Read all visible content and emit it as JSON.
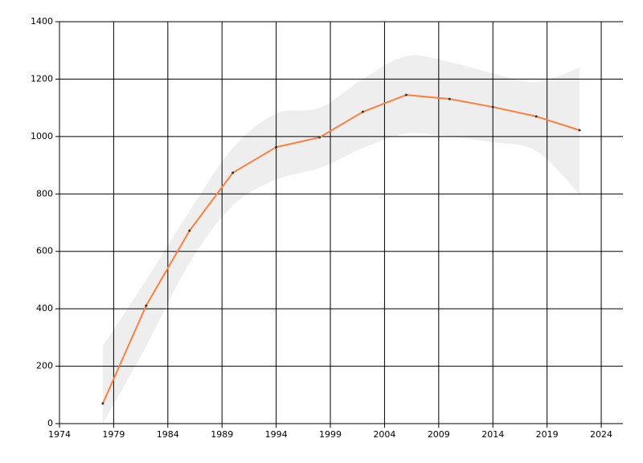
{
  "chart_data": {
    "type": "line",
    "x": [
      1978,
      1982,
      1986,
      1990,
      1994,
      1998,
      2002,
      2006,
      2010,
      2014,
      2018,
      2022
    ],
    "series": [
      {
        "color": "#ff7f3f",
        "values": [
          70,
          411,
          672,
          874,
          963,
          997,
          1086,
          1145,
          1131,
          1103,
          1070,
          1022
        ]
      }
    ],
    "band": {
      "color": "#eeeeee",
      "upper": [
        270,
        500,
        740,
        960,
        1080,
        1100,
        1200,
        1280,
        1260,
        1220,
        1190,
        1240
      ],
      "lower": [
        0,
        270,
        560,
        760,
        850,
        890,
        960,
        1010,
        1000,
        980,
        950,
        800
      ]
    },
    "xlim": [
      1974,
      2026
    ],
    "xticks": [
      1974,
      1979,
      1984,
      1989,
      1994,
      1999,
      2004,
      2009,
      2014,
      2019,
      2024
    ],
    "ylim": [
      0,
      1400
    ],
    "yticks": [
      0,
      200,
      400,
      600,
      800,
      1000,
      1200,
      1400
    ],
    "grid": true
  }
}
